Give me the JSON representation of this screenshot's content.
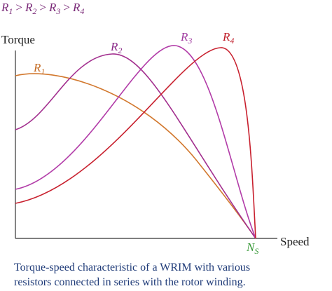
{
  "relation": {
    "terms": [
      {
        "symbol": "R",
        "sub": "1"
      },
      {
        "symbol": "R",
        "sub": "2"
      },
      {
        "symbol": "R",
        "sub": "3"
      },
      {
        "symbol": "R",
        "sub": "4"
      }
    ],
    "operator": ">"
  },
  "axes": {
    "y_label": "Torque",
    "x_label": "Speed"
  },
  "curves": [
    {
      "symbol": "R",
      "sub": "1"
    },
    {
      "symbol": "R",
      "sub": "2"
    },
    {
      "symbol": "R",
      "sub": "3"
    },
    {
      "symbol": "R",
      "sub": "4"
    }
  ],
  "sync_speed": {
    "symbol": "N",
    "sub": "S"
  },
  "caption": [
    "Torque-speed characteristic of a WRIM with various",
    "resistors connected in series with the rotor winding."
  ]
}
